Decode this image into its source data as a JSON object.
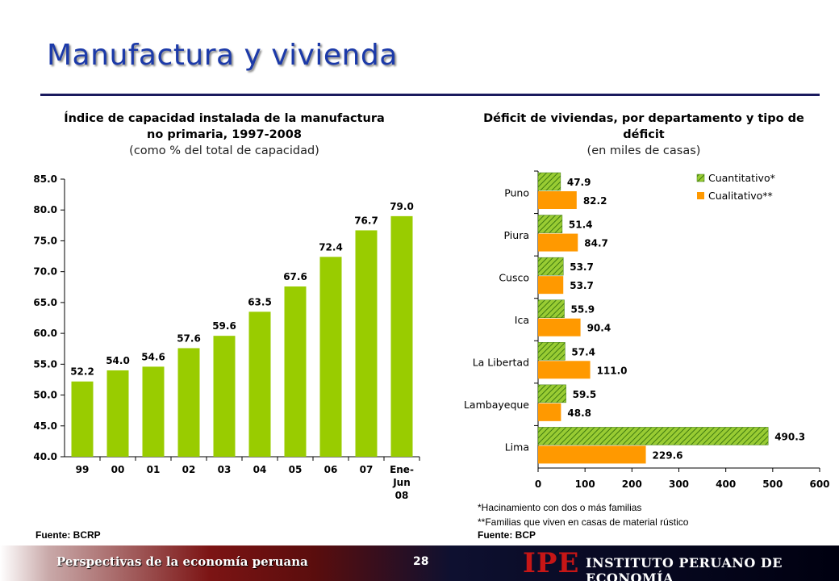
{
  "slide": {
    "title": "Manufactura y vivienda",
    "footer_subtitle": "Perspectivas de la economía peruana",
    "page_number": "28",
    "logo": "IPE",
    "organization": "INSTITUTO PERUANO DE ECONOMÍA",
    "colors": {
      "title": "#1c3aa9",
      "green_bar": "#99cc00",
      "orange_bar": "#ff9900",
      "hatch_green": "#5a9a1a",
      "logo": "#c61616"
    }
  },
  "chart_data": [
    {
      "type": "bar",
      "title": "Índice de capacidad instalada de la manufactura no primaria, 1997-2008",
      "subtitle": "(como % del total de capacidad)",
      "categories": [
        "99",
        "00",
        "01",
        "02",
        "03",
        "04",
        "05",
        "06",
        "07",
        "Ene-Jun 08"
      ],
      "category_lines": [
        [
          "99"
        ],
        [
          "00"
        ],
        [
          "01"
        ],
        [
          "02"
        ],
        [
          "03"
        ],
        [
          "04"
        ],
        [
          "05"
        ],
        [
          "06"
        ],
        [
          "07"
        ],
        [
          "Ene-",
          "Jun",
          "08"
        ]
      ],
      "values": [
        52.2,
        54.0,
        54.6,
        57.6,
        59.6,
        63.5,
        67.6,
        72.4,
        76.7,
        79.0
      ],
      "value_labels": [
        "52.2",
        "54.0",
        "54.6",
        "57.6",
        "59.6",
        "63.5",
        "67.6",
        "72.4",
        "76.7",
        "79.0"
      ],
      "ylim": [
        40.0,
        85.0
      ],
      "yticks": [
        "40.0",
        "45.0",
        "50.0",
        "55.0",
        "60.0",
        "65.0",
        "70.0",
        "75.0",
        "80.0",
        "85.0"
      ],
      "ytick_values": [
        40,
        45,
        50,
        55,
        60,
        65,
        70,
        75,
        80,
        85
      ],
      "grid": false,
      "source": "Fuente: BCRP"
    },
    {
      "type": "bar",
      "orientation": "horizontal",
      "title": "Déficit de viviendas, por departamento y tipo de déficit",
      "subtitle": "(en miles de casas)",
      "categories": [
        "Puno",
        "Piura",
        "Cusco",
        "Ica",
        "La Libertad",
        "Lambayeque",
        "Lima"
      ],
      "series": [
        {
          "name": "Cuantitativo*",
          "values": [
            47.9,
            51.4,
            53.7,
            55.9,
            57.4,
            59.5,
            490.3
          ],
          "labels": [
            "47.9",
            "51.4",
            "53.7",
            "55.9",
            "57.4",
            "59.5",
            "490.3"
          ]
        },
        {
          "name": "Cualitativo**",
          "values": [
            82.2,
            84.7,
            53.7,
            90.4,
            111.0,
            48.8,
            229.6
          ],
          "labels": [
            "82.2",
            "84.7",
            "53.7",
            "90.4",
            "111.0",
            "48.8",
            "229.6"
          ]
        }
      ],
      "xlim": [
        0,
        600
      ],
      "xticks": [
        "0",
        "100",
        "200",
        "300",
        "400",
        "500",
        "600"
      ],
      "xtick_values": [
        0,
        100,
        200,
        300,
        400,
        500,
        600
      ],
      "legend_position": "top-right",
      "grid": false,
      "notes": [
        "*Hacinamiento con dos o más familias",
        "**Familias que viven en casas de material rústico"
      ],
      "source": "Fuente: BCP"
    }
  ]
}
